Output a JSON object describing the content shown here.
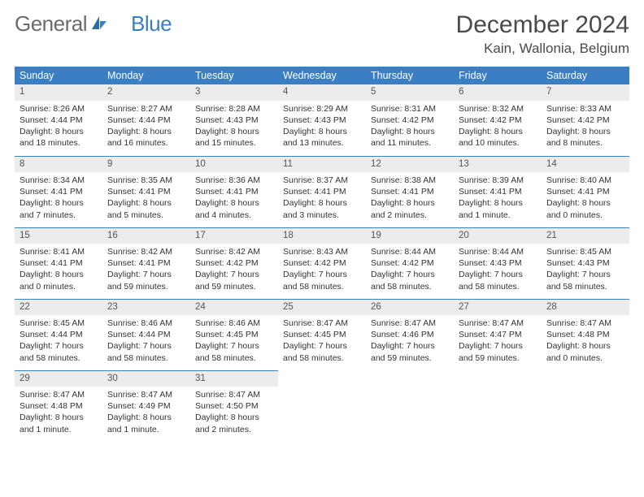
{
  "brand": {
    "part1": "General",
    "part2": "Blue"
  },
  "title": "December 2024",
  "location": "Kain, Wallonia, Belgium",
  "colors": {
    "header_bg": "#3a7fc4",
    "header_text": "#ffffff",
    "daynum_bg": "#ececec",
    "row_border": "#3a7fc4",
    "brand_gray": "#6b6b6b",
    "brand_blue": "#3a7fc4"
  },
  "weekdays": [
    "Sunday",
    "Monday",
    "Tuesday",
    "Wednesday",
    "Thursday",
    "Friday",
    "Saturday"
  ],
  "weeks": [
    [
      {
        "n": "1",
        "sr": "8:26 AM",
        "ss": "4:44 PM",
        "dl": "8 hours and 18 minutes."
      },
      {
        "n": "2",
        "sr": "8:27 AM",
        "ss": "4:44 PM",
        "dl": "8 hours and 16 minutes."
      },
      {
        "n": "3",
        "sr": "8:28 AM",
        "ss": "4:43 PM",
        "dl": "8 hours and 15 minutes."
      },
      {
        "n": "4",
        "sr": "8:29 AM",
        "ss": "4:43 PM",
        "dl": "8 hours and 13 minutes."
      },
      {
        "n": "5",
        "sr": "8:31 AM",
        "ss": "4:42 PM",
        "dl": "8 hours and 11 minutes."
      },
      {
        "n": "6",
        "sr": "8:32 AM",
        "ss": "4:42 PM",
        "dl": "8 hours and 10 minutes."
      },
      {
        "n": "7",
        "sr": "8:33 AM",
        "ss": "4:42 PM",
        "dl": "8 hours and 8 minutes."
      }
    ],
    [
      {
        "n": "8",
        "sr": "8:34 AM",
        "ss": "4:41 PM",
        "dl": "8 hours and 7 minutes."
      },
      {
        "n": "9",
        "sr": "8:35 AM",
        "ss": "4:41 PM",
        "dl": "8 hours and 5 minutes."
      },
      {
        "n": "10",
        "sr": "8:36 AM",
        "ss": "4:41 PM",
        "dl": "8 hours and 4 minutes."
      },
      {
        "n": "11",
        "sr": "8:37 AM",
        "ss": "4:41 PM",
        "dl": "8 hours and 3 minutes."
      },
      {
        "n": "12",
        "sr": "8:38 AM",
        "ss": "4:41 PM",
        "dl": "8 hours and 2 minutes."
      },
      {
        "n": "13",
        "sr": "8:39 AM",
        "ss": "4:41 PM",
        "dl": "8 hours and 1 minute."
      },
      {
        "n": "14",
        "sr": "8:40 AM",
        "ss": "4:41 PM",
        "dl": "8 hours and 0 minutes."
      }
    ],
    [
      {
        "n": "15",
        "sr": "8:41 AM",
        "ss": "4:41 PM",
        "dl": "8 hours and 0 minutes."
      },
      {
        "n": "16",
        "sr": "8:42 AM",
        "ss": "4:41 PM",
        "dl": "7 hours and 59 minutes."
      },
      {
        "n": "17",
        "sr": "8:42 AM",
        "ss": "4:42 PM",
        "dl": "7 hours and 59 minutes."
      },
      {
        "n": "18",
        "sr": "8:43 AM",
        "ss": "4:42 PM",
        "dl": "7 hours and 58 minutes."
      },
      {
        "n": "19",
        "sr": "8:44 AM",
        "ss": "4:42 PM",
        "dl": "7 hours and 58 minutes."
      },
      {
        "n": "20",
        "sr": "8:44 AM",
        "ss": "4:43 PM",
        "dl": "7 hours and 58 minutes."
      },
      {
        "n": "21",
        "sr": "8:45 AM",
        "ss": "4:43 PM",
        "dl": "7 hours and 58 minutes."
      }
    ],
    [
      {
        "n": "22",
        "sr": "8:45 AM",
        "ss": "4:44 PM",
        "dl": "7 hours and 58 minutes."
      },
      {
        "n": "23",
        "sr": "8:46 AM",
        "ss": "4:44 PM",
        "dl": "7 hours and 58 minutes."
      },
      {
        "n": "24",
        "sr": "8:46 AM",
        "ss": "4:45 PM",
        "dl": "7 hours and 58 minutes."
      },
      {
        "n": "25",
        "sr": "8:47 AM",
        "ss": "4:45 PM",
        "dl": "7 hours and 58 minutes."
      },
      {
        "n": "26",
        "sr": "8:47 AM",
        "ss": "4:46 PM",
        "dl": "7 hours and 59 minutes."
      },
      {
        "n": "27",
        "sr": "8:47 AM",
        "ss": "4:47 PM",
        "dl": "7 hours and 59 minutes."
      },
      {
        "n": "28",
        "sr": "8:47 AM",
        "ss": "4:48 PM",
        "dl": "8 hours and 0 minutes."
      }
    ],
    [
      {
        "n": "29",
        "sr": "8:47 AM",
        "ss": "4:48 PM",
        "dl": "8 hours and 1 minute."
      },
      {
        "n": "30",
        "sr": "8:47 AM",
        "ss": "4:49 PM",
        "dl": "8 hours and 1 minute."
      },
      {
        "n": "31",
        "sr": "8:47 AM",
        "ss": "4:50 PM",
        "dl": "8 hours and 2 minutes."
      },
      null,
      null,
      null,
      null
    ]
  ],
  "labels": {
    "sunrise": "Sunrise:",
    "sunset": "Sunset:",
    "daylight": "Daylight:"
  }
}
